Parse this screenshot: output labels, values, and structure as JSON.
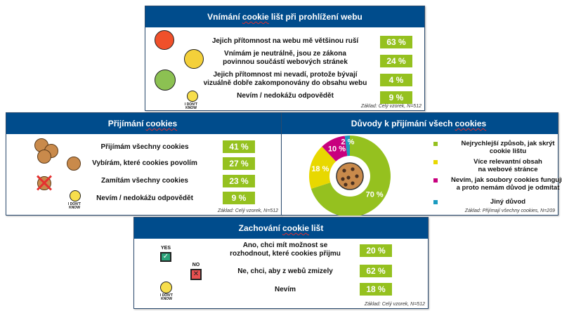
{
  "colors": {
    "header": "#004C8C",
    "value": "#95C11F",
    "green": "#95C11F",
    "yellow": "#E8D800",
    "magenta": "#C8007E",
    "blue": "#1A9BC0"
  },
  "perception": {
    "title_pre": "Vnímání",
    "title_sp": "cookie",
    "title_post": "lišt při prohlížení webu",
    "rows": [
      {
        "icon": "angry-face-icon",
        "text": "Jejich přítomnost na webu mě většinou ruší",
        "value": "63 %"
      },
      {
        "icon": "neutral-face-icon",
        "text": "Vnímám je neutrálně, jsou ze zákona\npovinnou součástí webových stránek",
        "value": "24 %"
      },
      {
        "icon": "happy-face-icon",
        "text": "Jejich přítomnost mi nevadí, protože bývají\nvizuálně dobře zakomponovány do obsahu webu",
        "value": "4 %"
      },
      {
        "icon": "dont-know-face-icon",
        "text": "Nevím / nedokážu odpovědět",
        "value": "9 %"
      }
    ],
    "idk": "I DON'T KNOW",
    "base": "Základ: Celý vzorek, N=512"
  },
  "accepting": {
    "title_pre": "Přijímání",
    "title_sp": "cookies",
    "title_post": "",
    "rows": [
      {
        "text": "Přijímám všechny cookies",
        "value": "41 %"
      },
      {
        "text": "Vybírám, které cookies povolím",
        "value": "27 %"
      },
      {
        "text": "Zamítám všechny cookies",
        "value": "23 %"
      },
      {
        "text": "Nevím / nedokážu odpovědět",
        "value": "9 %"
      }
    ],
    "idk": "I DON'T KNOW",
    "base": "Základ: Celý vzorek, N=512"
  },
  "reasons": {
    "title_pre": "Důvody k přijímání všech",
    "title_sp": "cookies",
    "title_post": "",
    "base": "Základ: Přijímají všechny cookies, N=209"
  },
  "chart_data": {
    "type": "pie",
    "title": "Důvody k přijímání všech cookies",
    "donut": true,
    "categories": [
      "Nejrychlejší způsob, jak skrýt\ncookie lištu",
      "Více relevantní obsah\nna webové stránce",
      "Nevím, jak soubory cookies fungují,\na proto nemám důvod je odmítat",
      "Jiný důvod"
    ],
    "values": [
      70,
      18,
      10,
      2
    ],
    "labels": [
      "70 %",
      "18 %",
      "10 %",
      "2 %"
    ],
    "colors": [
      "#95C11F",
      "#E8D800",
      "#C8007E",
      "#1A9BC0"
    ],
    "legend": "right"
  },
  "keeping": {
    "title_pre": "Zachování",
    "title_sp": "cookie",
    "title_post": "lišt",
    "rows": [
      {
        "text": "Ano, chci mít možnost se\nrozhodnout, které cookies přijmu",
        "value": "20 %"
      },
      {
        "text": "Ne, chci, aby z webů zmizely",
        "value": "62 %"
      },
      {
        "text": "Nevím",
        "value": "18 %"
      }
    ],
    "yes": "YES",
    "no": "NO",
    "idk": "I DON'T KNOW",
    "base": "Základ: Celý vzorek, N=512"
  }
}
